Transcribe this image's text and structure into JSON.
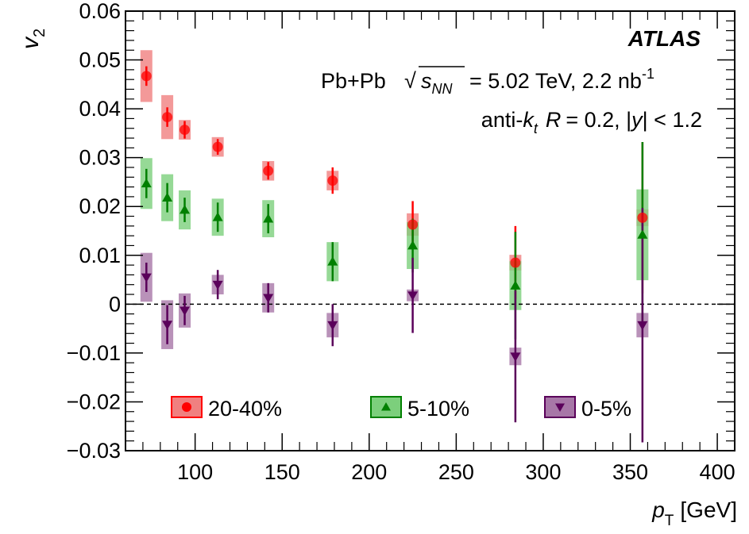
{
  "chart_data": {
    "type": "scatter",
    "xlabel": "p_T [GeV]",
    "xlabel_main": "p",
    "xlabel_sub": "T",
    "xlabel_unit": "[GeV]",
    "ylabel": "v_2",
    "ylabel_main": "v",
    "ylabel_sub": "2",
    "xlim": [
      60,
      410
    ],
    "ylim": [
      -0.03,
      0.06
    ],
    "xticks": [
      100,
      150,
      200,
      250,
      300,
      350,
      400
    ],
    "xtick_labels": [
      "100",
      "150",
      "200",
      "250",
      "300",
      "350",
      "400"
    ],
    "yticks": [
      -0.03,
      -0.02,
      -0.01,
      0,
      0.01,
      0.02,
      0.03,
      0.04,
      0.05,
      0.06
    ],
    "ytick_labels": [
      "−0.03",
      "−0.02",
      "−0.01",
      "0",
      "0.01",
      "0.02",
      "0.03",
      "0.04",
      "0.05",
      "0.06"
    ],
    "zero_line": "dashed",
    "grid": false,
    "legend_position": "bottom",
    "annotations": {
      "experiment": "ATLAS",
      "collision_prefix": "Pb+Pb",
      "sqrt_symbol": "√",
      "s": "s",
      "nn": "NN",
      "energy": "= 5.02 TeV, 2.2 nb",
      "lumi_exp": "-1",
      "algo_prefix": "anti-",
      "k": "k",
      "t": "t",
      "R": "R",
      "radius": "= 0.2, |",
      "y": "y",
      "rapidity": "| < 1.2"
    },
    "series": [
      {
        "name": "20-40%",
        "marker": "circle",
        "color": "#ff0000",
        "box_color": "#f08080",
        "points": [
          {
            "x": 72,
            "y": 0.0467,
            "stat": 0.002,
            "sys": 0.0053
          },
          {
            "x": 84,
            "y": 0.0383,
            "stat": 0.002,
            "sys": 0.0045
          },
          {
            "x": 94,
            "y": 0.0357,
            "stat": 0.0018,
            "sys": 0.002
          },
          {
            "x": 113,
            "y": 0.0322,
            "stat": 0.0016,
            "sys": 0.002
          },
          {
            "x": 142,
            "y": 0.0273,
            "stat": 0.0018,
            "sys": 0.002
          },
          {
            "x": 179,
            "y": 0.0253,
            "stat": 0.0027,
            "sys": 0.002
          },
          {
            "x": 225,
            "y": 0.0163,
            "stat": 0.0048,
            "sys": 0.0023
          },
          {
            "x": 284,
            "y": 0.0085,
            "stat": 0.0075,
            "sys": 0.0016
          },
          {
            "x": 357,
            "y": 0.0177,
            "stat": 0.0155,
            "sys": 0.0017
          }
        ]
      },
      {
        "name": "5-10%",
        "marker": "triangle-up",
        "color": "#008000",
        "box_color": "#7ccf7c",
        "points": [
          {
            "x": 72,
            "y": 0.0247,
            "stat": 0.003,
            "sys": 0.0052
          },
          {
            "x": 84,
            "y": 0.0218,
            "stat": 0.003,
            "sys": 0.0048
          },
          {
            "x": 94,
            "y": 0.0193,
            "stat": 0.0025,
            "sys": 0.004
          },
          {
            "x": 113,
            "y": 0.0178,
            "stat": 0.003,
            "sys": 0.0038
          },
          {
            "x": 142,
            "y": 0.0175,
            "stat": 0.003,
            "sys": 0.0038
          },
          {
            "x": 179,
            "y": 0.0087,
            "stat": 0.004,
            "sys": 0.004
          },
          {
            "x": 225,
            "y": 0.012,
            "stat": 0.0055,
            "sys": 0.0048
          },
          {
            "x": 284,
            "y": 0.0038,
            "stat": 0.011,
            "sys": 0.005
          },
          {
            "x": 357,
            "y": 0.0142,
            "stat": 0.019,
            "sys": 0.0093
          }
        ]
      },
      {
        "name": "0-5%",
        "marker": "triangle-down",
        "color": "#5a005a",
        "box_color": "#a777a7",
        "points": [
          {
            "x": 72,
            "y": 0.0055,
            "stat": 0.003,
            "sys": 0.005
          },
          {
            "x": 84,
            "y": -0.0042,
            "stat": 0.004,
            "sys": 0.005
          },
          {
            "x": 94,
            "y": -0.0013,
            "stat": 0.003,
            "sys": 0.0035
          },
          {
            "x": 113,
            "y": 0.004,
            "stat": 0.003,
            "sys": 0.002
          },
          {
            "x": 142,
            "y": 0.0013,
            "stat": 0.003,
            "sys": 0.003
          },
          {
            "x": 179,
            "y": -0.0043,
            "stat": 0.0043,
            "sys": 0.0025
          },
          {
            "x": 225,
            "y": 0.0018,
            "stat": 0.0077,
            "sys": 0.0012
          },
          {
            "x": 284,
            "y": -0.0107,
            "stat": 0.0135,
            "sys": 0.0018
          },
          {
            "x": 357,
            "y": -0.0043,
            "stat": 0.024,
            "sys": 0.0025
          }
        ]
      }
    ]
  }
}
